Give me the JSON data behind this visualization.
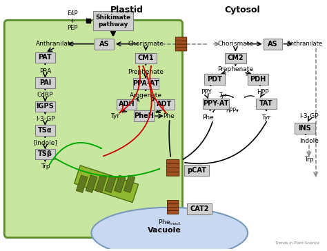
{
  "bg_color": "#ffffff",
  "plastid_color": "#c8e6a0",
  "plastid_border": "#5a8a2a",
  "vacuole_color": "#c8d8f0",
  "box_color": "#d0d0d0",
  "box_edge": "#808080",
  "title_plastid": "Plastid",
  "title_cytosol": "Cytosol",
  "title_vacuole": "Vacuole",
  "brand": "Trends in Plant Science",
  "barrel_face": "#a05020",
  "barrel_edge": "#5a2800",
  "green_arrow": "#00aa00",
  "red_arrow": "#cc0000"
}
